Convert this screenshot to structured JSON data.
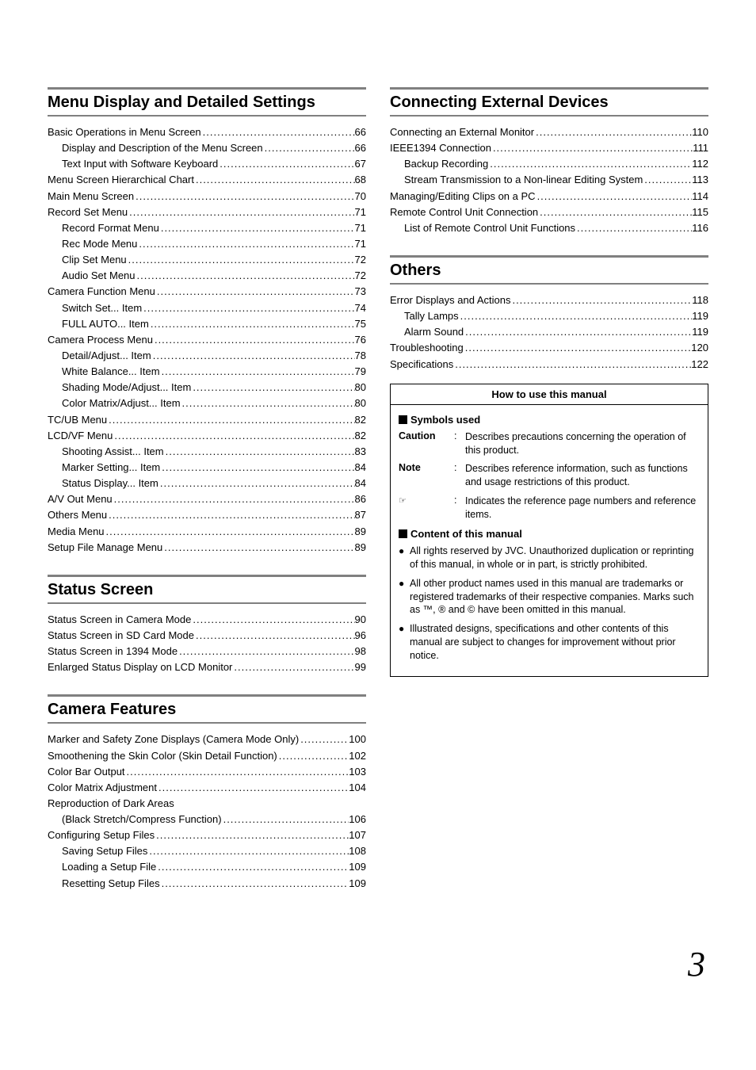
{
  "page_number": "3",
  "left": {
    "sections": [
      {
        "title": "Menu Display and Detailed Settings",
        "items": [
          {
            "label": "Basic Operations in Menu Screen",
            "page": "66",
            "indent": 0
          },
          {
            "label": "Display and Description of the Menu Screen",
            "page": "66",
            "indent": 1
          },
          {
            "label": "Text Input with Software Keyboard",
            "page": "67",
            "indent": 1
          },
          {
            "label": "Menu Screen Hierarchical Chart",
            "page": "68",
            "indent": 0
          },
          {
            "label": "Main Menu Screen",
            "page": "70",
            "indent": 0
          },
          {
            "label": "Record Set Menu",
            "page": "71",
            "indent": 0
          },
          {
            "label": "Record Format Menu",
            "page": "71",
            "indent": 1
          },
          {
            "label": "Rec Mode Menu",
            "page": "71",
            "indent": 1
          },
          {
            "label": "Clip Set Menu",
            "page": "72",
            "indent": 1
          },
          {
            "label": "Audio Set Menu",
            "page": "72",
            "indent": 1
          },
          {
            "label": "Camera Function Menu",
            "page": "73",
            "indent": 0
          },
          {
            "label": "Switch Set... Item",
            "page": "74",
            "indent": 1
          },
          {
            "label": "FULL AUTO... Item",
            "page": "75",
            "indent": 1
          },
          {
            "label": "Camera Process Menu",
            "page": "76",
            "indent": 0
          },
          {
            "label": "Detail/Adjust... Item",
            "page": "78",
            "indent": 1
          },
          {
            "label": "White Balance... Item",
            "page": "79",
            "indent": 1
          },
          {
            "label": "Shading Mode/Adjust... Item",
            "page": "80",
            "indent": 1
          },
          {
            "label": "Color Matrix/Adjust... Item",
            "page": "80",
            "indent": 1
          },
          {
            "label": "TC/UB Menu",
            "page": "82",
            "indent": 0
          },
          {
            "label": "LCD/VF Menu",
            "page": "82",
            "indent": 0
          },
          {
            "label": "Shooting Assist... Item",
            "page": "83",
            "indent": 1
          },
          {
            "label": "Marker Setting... Item",
            "page": "84",
            "indent": 1
          },
          {
            "label": "Status Display... Item",
            "page": "84",
            "indent": 1
          },
          {
            "label": "A/V Out Menu",
            "page": "86",
            "indent": 0
          },
          {
            "label": "Others Menu",
            "page": "87",
            "indent": 0
          },
          {
            "label": "Media Menu",
            "page": "89",
            "indent": 0
          },
          {
            "label": "Setup File Manage Menu",
            "page": "89",
            "indent": 0
          }
        ]
      },
      {
        "title": "Status Screen",
        "items": [
          {
            "label": "Status Screen in Camera Mode",
            "page": "90",
            "indent": 0
          },
          {
            "label": "Status Screen in SD Card Mode",
            "page": "96",
            "indent": 0
          },
          {
            "label": "Status Screen in 1394 Mode",
            "page": "98",
            "indent": 0
          },
          {
            "label": "Enlarged Status Display on LCD Monitor",
            "page": "99",
            "indent": 0
          }
        ]
      },
      {
        "title": "Camera Features",
        "items": [
          {
            "label": "Marker and Safety Zone Displays (Camera Mode Only)",
            "page": "100",
            "indent": 0
          },
          {
            "label": "Smoothening the Skin Color (Skin Detail Function)",
            "page": "102",
            "indent": 0
          },
          {
            "label": "Color Bar Output",
            "page": "103",
            "indent": 0
          },
          {
            "label": "Color Matrix Adjustment",
            "page": "104",
            "indent": 0
          },
          {
            "label": "Reproduction of Dark Areas",
            "page": "",
            "indent": 0,
            "nopage": true
          },
          {
            "label": "(Black Stretch/Compress Function)",
            "page": "106",
            "indent": 1
          },
          {
            "label": "Configuring Setup Files",
            "page": "107",
            "indent": 0
          },
          {
            "label": "Saving Setup Files",
            "page": "108",
            "indent": 1
          },
          {
            "label": "Loading a Setup File",
            "page": "109",
            "indent": 1
          },
          {
            "label": "Resetting Setup Files",
            "page": "109",
            "indent": 1
          }
        ]
      }
    ]
  },
  "right": {
    "sections": [
      {
        "title": "Connecting External Devices",
        "items": [
          {
            "label": "Connecting an External Monitor",
            "page": "110",
            "indent": 0
          },
          {
            "label": "IEEE1394 Connection",
            "page": "111",
            "indent": 0
          },
          {
            "label": "Backup Recording",
            "page": "112",
            "indent": 1
          },
          {
            "label": "Stream Transmission to a Non-linear Editing System",
            "page": "113",
            "indent": 1
          },
          {
            "label": "Managing/Editing Clips on a PC",
            "page": "114",
            "indent": 0
          },
          {
            "label": "Remote Control Unit Connection",
            "page": "115",
            "indent": 0
          },
          {
            "label": "List of Remote Control Unit Functions",
            "page": "116",
            "indent": 1
          }
        ]
      },
      {
        "title": "Others",
        "items": [
          {
            "label": "Error Displays and Actions",
            "page": "118",
            "indent": 0
          },
          {
            "label": "Tally Lamps",
            "page": "119",
            "indent": 1
          },
          {
            "label": "Alarm Sound",
            "page": "119",
            "indent": 1
          },
          {
            "label": "Troubleshooting",
            "page": "120",
            "indent": 0
          },
          {
            "label": "Specifications",
            "page": "122",
            "indent": 0
          }
        ]
      }
    ]
  },
  "manual_box": {
    "title": "How to use this manual",
    "symbols_heading": "Symbols used",
    "symbols": [
      {
        "term": "Caution",
        "desc": "Describes precautions concerning the operation of this product."
      },
      {
        "term": "Note",
        "desc": "Describes reference information, such as functions and usage restrictions of this product."
      },
      {
        "term": "☞",
        "desc": "Indicates the reference page numbers and reference items.",
        "icon": true
      }
    ],
    "content_heading": "Content of this manual",
    "bullets": [
      "All rights reserved by JVC. Unauthorized duplication or reprinting of this manual, in whole or in part, is strictly prohibited.",
      "All other product names used in this manual are trademarks or registered trademarks of their respective companies. Marks such as ™, ® and © have been omitted in this manual.",
      "Illustrated designs, specifications and other contents of this manual are subject to changes for improvement without prior notice."
    ]
  }
}
